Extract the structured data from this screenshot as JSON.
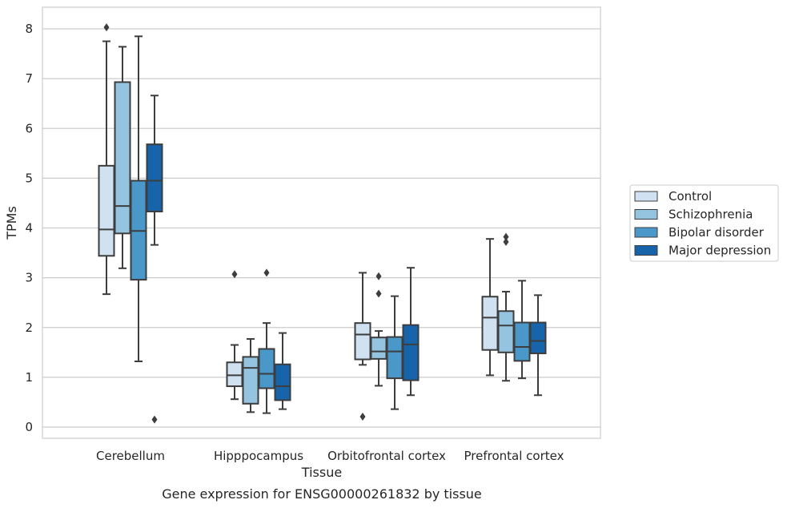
{
  "caption": "Gene expression for ENSG00000261832 by tissue",
  "chart_data": {
    "type": "boxplot",
    "title": "",
    "xlabel": "Tissue",
    "ylabel": "TPMs",
    "ylim": [
      -0.2,
      8.4
    ],
    "yticks": [
      0,
      1,
      2,
      3,
      4,
      5,
      6,
      7,
      8
    ],
    "grid": "horizontal",
    "legend_position": "right",
    "categories": [
      "Cerebellum",
      "Hipppocampus",
      "Orbitofrontal cortex",
      "Prefrontal cortex"
    ],
    "series": [
      {
        "name": "Control",
        "color": "#d0e1f2",
        "boxes": [
          {
            "whislo": 2.67,
            "q1": 3.44,
            "med": 3.97,
            "q3": 5.25,
            "whishi": 7.75,
            "fliers": [
              8.03
            ]
          },
          {
            "whislo": 0.56,
            "q1": 0.82,
            "med": 1.04,
            "q3": 1.3,
            "whishi": 1.65,
            "fliers": [
              3.07
            ]
          },
          {
            "whislo": 1.25,
            "q1": 1.36,
            "med": 1.86,
            "q3": 2.09,
            "whishi": 3.1,
            "fliers": [
              0.21
            ]
          },
          {
            "whislo": 1.04,
            "q1": 1.55,
            "med": 2.2,
            "q3": 2.62,
            "whishi": 3.78,
            "fliers": []
          }
        ]
      },
      {
        "name": "Schizophrenia",
        "color": "#94c4df",
        "boxes": [
          {
            "whislo": 3.19,
            "q1": 3.89,
            "med": 4.44,
            "q3": 6.93,
            "whishi": 7.64,
            "fliers": []
          },
          {
            "whislo": 0.3,
            "q1": 0.47,
            "med": 1.19,
            "q3": 1.41,
            "whishi": 1.77,
            "fliers": []
          },
          {
            "whislo": 0.83,
            "q1": 1.37,
            "med": 1.52,
            "q3": 1.8,
            "whishi": 1.93,
            "fliers": [
              3.03,
              2.68
            ]
          },
          {
            "whislo": 0.93,
            "q1": 1.5,
            "med": 2.04,
            "q3": 2.33,
            "whishi": 2.72,
            "fliers": [
              3.82,
              3.72
            ]
          }
        ]
      },
      {
        "name": "Bipolar disorder",
        "color": "#4a98c9",
        "boxes": [
          {
            "whislo": 1.32,
            "q1": 2.96,
            "med": 3.94,
            "q3": 4.95,
            "whishi": 7.85,
            "fliers": []
          },
          {
            "whislo": 0.28,
            "q1": 0.78,
            "med": 1.07,
            "q3": 1.57,
            "whishi": 2.09,
            "fliers": [
              3.1
            ]
          },
          {
            "whislo": 0.36,
            "q1": 0.98,
            "med": 1.52,
            "q3": 1.81,
            "whishi": 2.63,
            "fliers": []
          },
          {
            "whislo": 0.98,
            "q1": 1.33,
            "med": 1.61,
            "q3": 2.1,
            "whishi": 2.94,
            "fliers": []
          }
        ]
      },
      {
        "name": "Major depression",
        "color": "#1764ab",
        "boxes": [
          {
            "whislo": 3.66,
            "q1": 4.33,
            "med": 4.95,
            "q3": 5.68,
            "whishi": 6.66,
            "fliers": [
              0.15
            ]
          },
          {
            "whislo": 0.36,
            "q1": 0.54,
            "med": 0.82,
            "q3": 1.26,
            "whishi": 1.89,
            "fliers": []
          },
          {
            "whislo": 0.64,
            "q1": 0.94,
            "med": 1.66,
            "q3": 2.05,
            "whishi": 3.2,
            "fliers": []
          },
          {
            "whislo": 0.64,
            "q1": 1.48,
            "med": 1.73,
            "q3": 2.1,
            "whishi": 2.65,
            "fliers": []
          }
        ]
      }
    ]
  }
}
